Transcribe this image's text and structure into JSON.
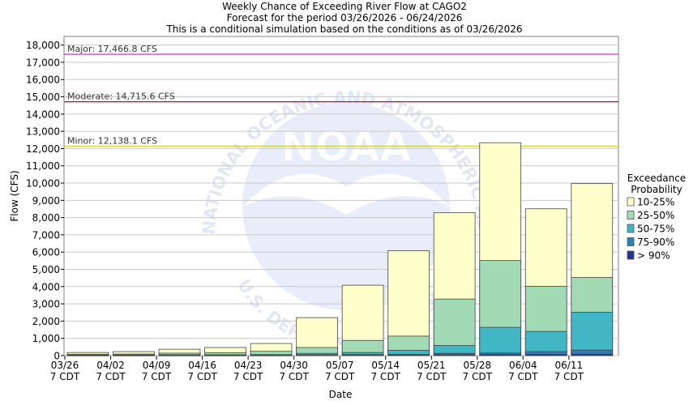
{
  "chart_data": {
    "type": "bar",
    "stacked": true,
    "title": "Weekly Chance of Exceeding River Flow at CAGO2",
    "subtitle1": "Forecast for the period 03/26/2026 - 06/24/2026",
    "subtitle2": "This is a conditional simulation based on the conditions as of 03/26/2026",
    "xlabel": "Date",
    "ylabel": "Flow (CFS)",
    "ylim": [
      0,
      18500
    ],
    "yticks": [
      "0",
      "1,000",
      "2,000",
      "3,000",
      "4,000",
      "5,000",
      "6,000",
      "7,000",
      "8,000",
      "9,000",
      "10,000",
      "11,000",
      "12,000",
      "13,000",
      "14,000",
      "15,000",
      "16,000",
      "17,000",
      "18,000"
    ],
    "ytick_values": [
      0,
      1000,
      2000,
      3000,
      4000,
      5000,
      6000,
      7000,
      8000,
      9000,
      10000,
      11000,
      12000,
      13000,
      14000,
      15000,
      16000,
      17000,
      18000
    ],
    "x_tick_labels": [
      {
        "date": "03/26",
        "tz": "7 CDT"
      },
      {
        "date": "04/02",
        "tz": "7 CDT"
      },
      {
        "date": "04/09",
        "tz": "7 CDT"
      },
      {
        "date": "04/16",
        "tz": "7 CDT"
      },
      {
        "date": "04/23",
        "tz": "7 CDT"
      },
      {
        "date": "04/30",
        "tz": "7 CDT"
      },
      {
        "date": "05/07",
        "tz": "7 CDT"
      },
      {
        "date": "05/14",
        "tz": "7 CDT"
      },
      {
        "date": "05/21",
        "tz": "7 CDT"
      },
      {
        "date": "05/28",
        "tz": "7 CDT"
      },
      {
        "date": "06/04",
        "tz": "7 CDT"
      },
      {
        "date": "06/11",
        "tz": "7 CDT"
      }
    ],
    "weeks": [
      {
        "b90": 10,
        "b75": 20,
        "b50": 40,
        "b25": 80,
        "b10": 180
      },
      {
        "b90": 10,
        "b75": 20,
        "b50": 40,
        "b25": 90,
        "b10": 230
      },
      {
        "b90": 10,
        "b75": 20,
        "b50": 50,
        "b25": 140,
        "b10": 370
      },
      {
        "b90": 10,
        "b75": 20,
        "b50": 50,
        "b25": 160,
        "b10": 470
      },
      {
        "b90": 10,
        "b75": 20,
        "b50": 60,
        "b25": 250,
        "b10": 700
      },
      {
        "b90": 20,
        "b75": 50,
        "b50": 130,
        "b25": 470,
        "b10": 2200
      },
      {
        "b90": 30,
        "b75": 60,
        "b50": 180,
        "b25": 880,
        "b10": 4080
      },
      {
        "b90": 30,
        "b75": 70,
        "b50": 310,
        "b25": 1130,
        "b10": 6080
      },
      {
        "b90": 50,
        "b75": 130,
        "b50": 590,
        "b25": 3280,
        "b10": 8280
      },
      {
        "b90": 60,
        "b75": 150,
        "b50": 1640,
        "b25": 5510,
        "b10": 12340
      },
      {
        "b90": 70,
        "b75": 230,
        "b50": 1400,
        "b25": 4020,
        "b10": 8510
      },
      {
        "b90": 90,
        "b75": 320,
        "b50": 2510,
        "b25": 4530,
        "b10": 9970
      }
    ],
    "series": [
      {
        "name": "10-25%",
        "key": "b10",
        "color": "#ffffcc"
      },
      {
        "name": "25-50%",
        "key": "b25",
        "color": "#a1dab4"
      },
      {
        "name": "50-75%",
        "key": "b50",
        "color": "#41b6c4"
      },
      {
        "name": "75-90%",
        "key": "b75",
        "color": "#2c7fb8"
      },
      {
        "name": "> 90%",
        "key": "b90",
        "color": "#253494"
      }
    ],
    "legend": {
      "title_line1": "Exceedance",
      "title_line2": "Probability",
      "placement": "right"
    },
    "thresholds": [
      {
        "label": "Major: 17,466.8 CFS",
        "value": 17466.8,
        "color": "#cc33cc"
      },
      {
        "label": "Moderate: 14,715.6 CFS",
        "value": 14715.6,
        "color": "#cc0033"
      },
      {
        "label": "Minor: 12,138.1 CFS",
        "value": 12138.1,
        "color": "#cccc33"
      }
    ],
    "watermark": {
      "text_top": "NATIONAL OCEANIC AND ATMOSPHERIC ADMINISTRATION",
      "text_bottom": "U.S. DEPARTMENT OF COMMERCE",
      "logo": "NOAA"
    }
  }
}
